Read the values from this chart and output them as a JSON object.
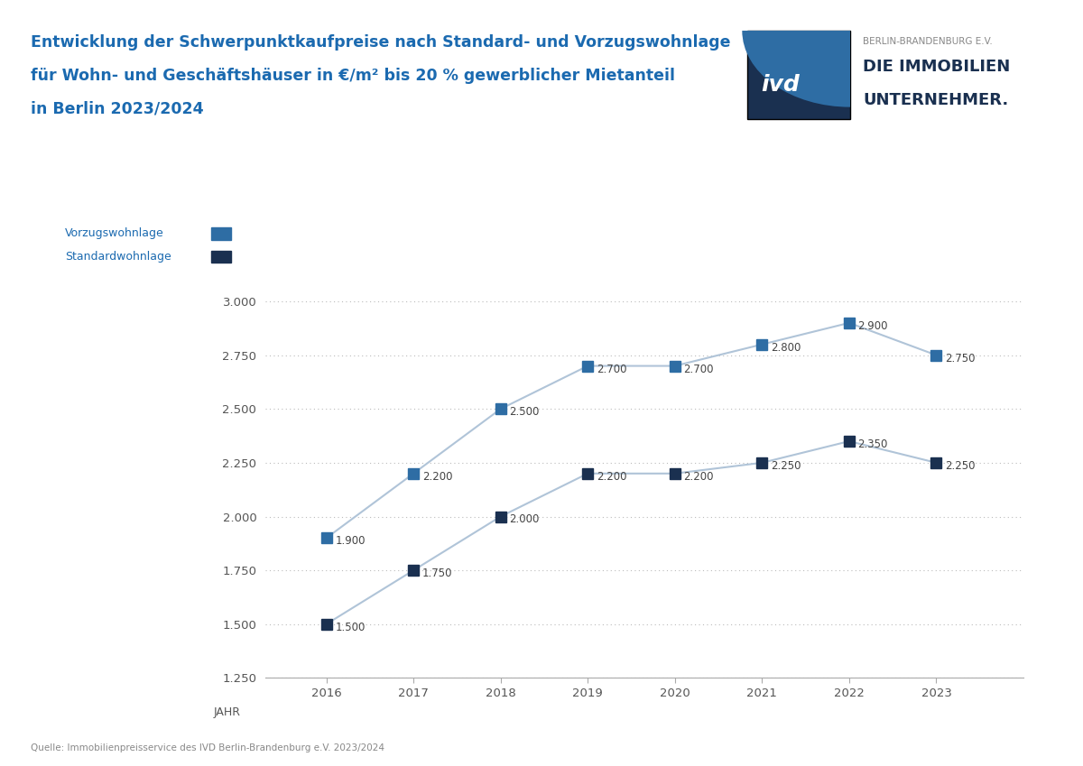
{
  "title_line1": "Entwicklung der Schwerpunktkaufpreise nach Standard- und Vorzugswohnlage",
  "title_line2": "für Wohn- und Geschäftshäuser in €/m² bis 20 % gewerblicher Mietanteil",
  "title_line3": "in Berlin 2023/2024",
  "title_color": "#1b6ab0",
  "years": [
    2016,
    2017,
    2018,
    2019,
    2020,
    2021,
    2022,
    2023
  ],
  "vorzug": [
    1900,
    2200,
    2500,
    2700,
    2700,
    2800,
    2900,
    2750
  ],
  "standard": [
    1500,
    1750,
    2000,
    2200,
    2200,
    2250,
    2350,
    2250
  ],
  "vorzug_color": "#2e6da4",
  "standard_color": "#1a3050",
  "line_color": "#b0c4d8",
  "grid_color": "#bbbbbb",
  "bg_color": "#ffffff",
  "ylim_min": 1250,
  "ylim_max": 3000,
  "yticks": [
    1250,
    1500,
    1750,
    2000,
    2250,
    2500,
    2750,
    3000
  ],
  "xlabel": "JAHR",
  "legend_vorzug": "Vorzugswohnlage",
  "legend_standard": "Standardwohnlage",
  "source_text": "Quelle: Immobilienpreisservice des IVD Berlin-Brandenburg e.V. 2023/2024",
  "ivd_text1": "BERLIN-BRANDENBURG E.V.",
  "ivd_text2": "DIE IMMOBILIEN",
  "ivd_text3": "UNTERNEHMER.",
  "ivd_dark": "#1a3050",
  "ivd_light": "#2e6da4",
  "ivd_gray": "#888888"
}
